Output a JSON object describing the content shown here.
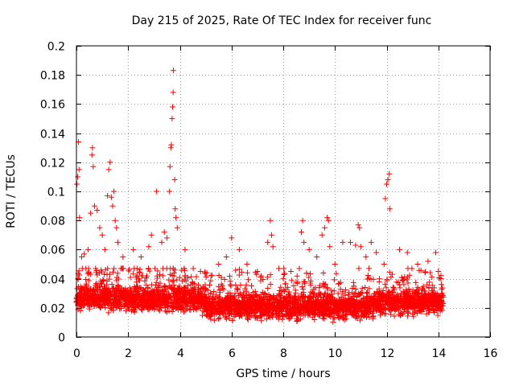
{
  "chart_data": {
    "type": "scatter",
    "title": "Day 215 of 2025, Rate Of TEC Index for receiver func",
    "xlabel": "GPS time / hours",
    "ylabel": "ROTI / TECUs",
    "xlim": [
      0,
      16
    ],
    "ylim": [
      0,
      0.2
    ],
    "xticks": [
      "0",
      "2",
      "4",
      "6",
      "8",
      "10",
      "12",
      "14",
      "16"
    ],
    "yticks": [
      "0",
      "0.02",
      "0.04",
      "0.06",
      "0.08",
      "0.1",
      "0.12",
      "0.14",
      "0.16",
      "0.18",
      "0.2"
    ],
    "grid": true,
    "marker": "+",
    "color": "#ff0000",
    "data_span_hours": [
      0,
      14.2
    ],
    "series": [
      {
        "values": [
          [
            0.02,
            0.105
          ],
          [
            0.05,
            0.11
          ],
          [
            0.08,
            0.134
          ],
          [
            0.1,
            0.115
          ],
          [
            0.12,
            0.082
          ],
          [
            0.2,
            0.055
          ],
          [
            0.3,
            0.057
          ],
          [
            0.45,
            0.06
          ],
          [
            0.55,
            0.085
          ],
          [
            0.6,
            0.125
          ],
          [
            0.62,
            0.13
          ],
          [
            0.65,
            0.117
          ],
          [
            0.7,
            0.09
          ],
          [
            0.8,
            0.087
          ],
          [
            0.9,
            0.075
          ],
          [
            1.0,
            0.07
          ],
          [
            1.1,
            0.06
          ],
          [
            1.2,
            0.097
          ],
          [
            1.25,
            0.115
          ],
          [
            1.3,
            0.12
          ],
          [
            1.35,
            0.096
          ],
          [
            1.4,
            0.09
          ],
          [
            1.45,
            0.1
          ],
          [
            1.5,
            0.08
          ],
          [
            1.55,
            0.075
          ],
          [
            1.6,
            0.065
          ],
          [
            1.8,
            0.055
          ],
          [
            2.2,
            0.06
          ],
          [
            2.5,
            0.055
          ],
          [
            2.8,
            0.062
          ],
          [
            2.9,
            0.07
          ],
          [
            3.1,
            0.1
          ],
          [
            3.3,
            0.065
          ],
          [
            3.4,
            0.072
          ],
          [
            3.5,
            0.068
          ],
          [
            3.6,
            0.1
          ],
          [
            3.62,
            0.117
          ],
          [
            3.65,
            0.13
          ],
          [
            3.67,
            0.132
          ],
          [
            3.7,
            0.15
          ],
          [
            3.72,
            0.158
          ],
          [
            3.74,
            0.168
          ],
          [
            3.75,
            0.183
          ],
          [
            3.8,
            0.108
          ],
          [
            3.82,
            0.088
          ],
          [
            3.85,
            0.082
          ],
          [
            3.9,
            0.075
          ],
          [
            4.2,
            0.06
          ],
          [
            4.8,
            0.045
          ],
          [
            5.5,
            0.05
          ],
          [
            5.8,
            0.055
          ],
          [
            6.0,
            0.068
          ],
          [
            6.3,
            0.06
          ],
          [
            6.6,
            0.05
          ],
          [
            7.0,
            0.045
          ],
          [
            7.4,
            0.065
          ],
          [
            7.5,
            0.08
          ],
          [
            7.55,
            0.07
          ],
          [
            7.6,
            0.062
          ],
          [
            8.0,
            0.04
          ],
          [
            8.3,
            0.045
          ],
          [
            8.7,
            0.072
          ],
          [
            8.75,
            0.08
          ],
          [
            8.8,
            0.065
          ],
          [
            9.0,
            0.06
          ],
          [
            9.3,
            0.055
          ],
          [
            9.5,
            0.07
          ],
          [
            9.6,
            0.075
          ],
          [
            9.7,
            0.082
          ],
          [
            9.75,
            0.08
          ],
          [
            9.8,
            0.062
          ],
          [
            10.0,
            0.05
          ],
          [
            10.3,
            0.065
          ],
          [
            10.6,
            0.065
          ],
          [
            10.8,
            0.063
          ],
          [
            10.9,
            0.077
          ],
          [
            10.95,
            0.075
          ],
          [
            11.0,
            0.062
          ],
          [
            11.2,
            0.055
          ],
          [
            11.4,
            0.065
          ],
          [
            11.6,
            0.058
          ],
          [
            11.9,
            0.05
          ],
          [
            11.95,
            0.095
          ],
          [
            12.0,
            0.105
          ],
          [
            12.05,
            0.108
          ],
          [
            12.1,
            0.112
          ],
          [
            12.12,
            0.088
          ],
          [
            12.5,
            0.06
          ],
          [
            12.8,
            0.058
          ],
          [
            13.2,
            0.05
          ],
          [
            13.6,
            0.052
          ],
          [
            13.9,
            0.058
          ],
          [
            14.0,
            0.045
          ],
          [
            14.1,
            0.04
          ]
        ]
      }
    ]
  }
}
